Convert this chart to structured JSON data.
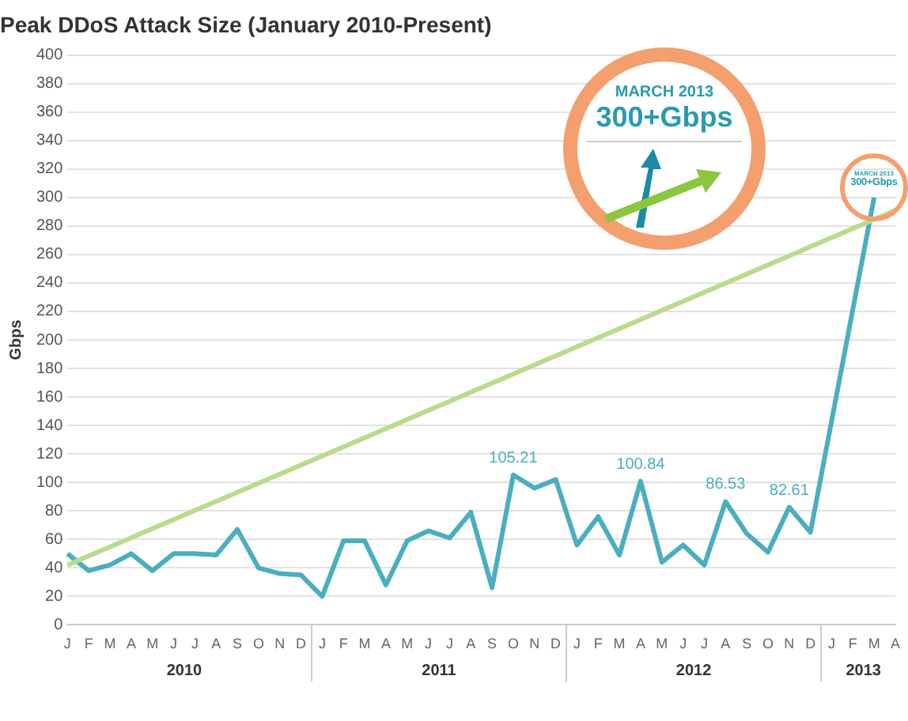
{
  "chart_data": {
    "type": "line",
    "title": "Peak DDoS Attack Size (January 2010-Present)",
    "ylabel": "Gbps",
    "categories": [
      "J",
      "F",
      "M",
      "A",
      "M",
      "J",
      "J",
      "A",
      "S",
      "O",
      "N",
      "D",
      "J",
      "F",
      "M",
      "A",
      "M",
      "J",
      "J",
      "A",
      "S",
      "O",
      "N",
      "D",
      "J",
      "F",
      "M",
      "A",
      "M",
      "J",
      "J",
      "A",
      "S",
      "O",
      "N",
      "D",
      "J",
      "F",
      "M",
      "A"
    ],
    "series": [
      {
        "color": "#4aaec0",
        "values": [
          50,
          38,
          42,
          50,
          38,
          50,
          50,
          49,
          67,
          40,
          36,
          35,
          20,
          59,
          59,
          28,
          59,
          66,
          61,
          79,
          26,
          105.21,
          96,
          102,
          56,
          76,
          49,
          100.84,
          44,
          56,
          42,
          86.53,
          64,
          51,
          82.61,
          65,
          null,
          null,
          300,
          null
        ],
        "value_labels": [
          null,
          null,
          null,
          null,
          null,
          null,
          null,
          null,
          null,
          null,
          null,
          null,
          null,
          null,
          null,
          null,
          null,
          null,
          null,
          null,
          null,
          "105.21",
          null,
          null,
          null,
          null,
          null,
          "100.84",
          null,
          null,
          null,
          "86.53",
          null,
          null,
          "82.61",
          null,
          null,
          null,
          null,
          null
        ]
      },
      {
        "type": "line",
        "color": "#b9dc8c",
        "values": [
          42,
          null,
          null,
          null,
          null,
          null,
          null,
          null,
          null,
          null,
          null,
          null,
          null,
          null,
          null,
          null,
          null,
          null,
          null,
          null,
          null,
          null,
          null,
          null,
          null,
          null,
          null,
          null,
          null,
          null,
          null,
          null,
          null,
          null,
          null,
          null,
          null,
          null,
          null,
          291
        ]
      }
    ],
    "ylim": [
      0,
      400
    ],
    "yticks": [
      0,
      20,
      40,
      60,
      80,
      100,
      120,
      140,
      160,
      180,
      200,
      220,
      240,
      260,
      280,
      300,
      320,
      340,
      360,
      380,
      400
    ],
    "grid": "y",
    "legend": false,
    "marker": "none",
    "line_style": "solid",
    "annotations": [
      "MARCH 2013",
      "300+Gbps",
      "2010",
      "2011",
      "2012",
      "2013"
    ]
  }
}
